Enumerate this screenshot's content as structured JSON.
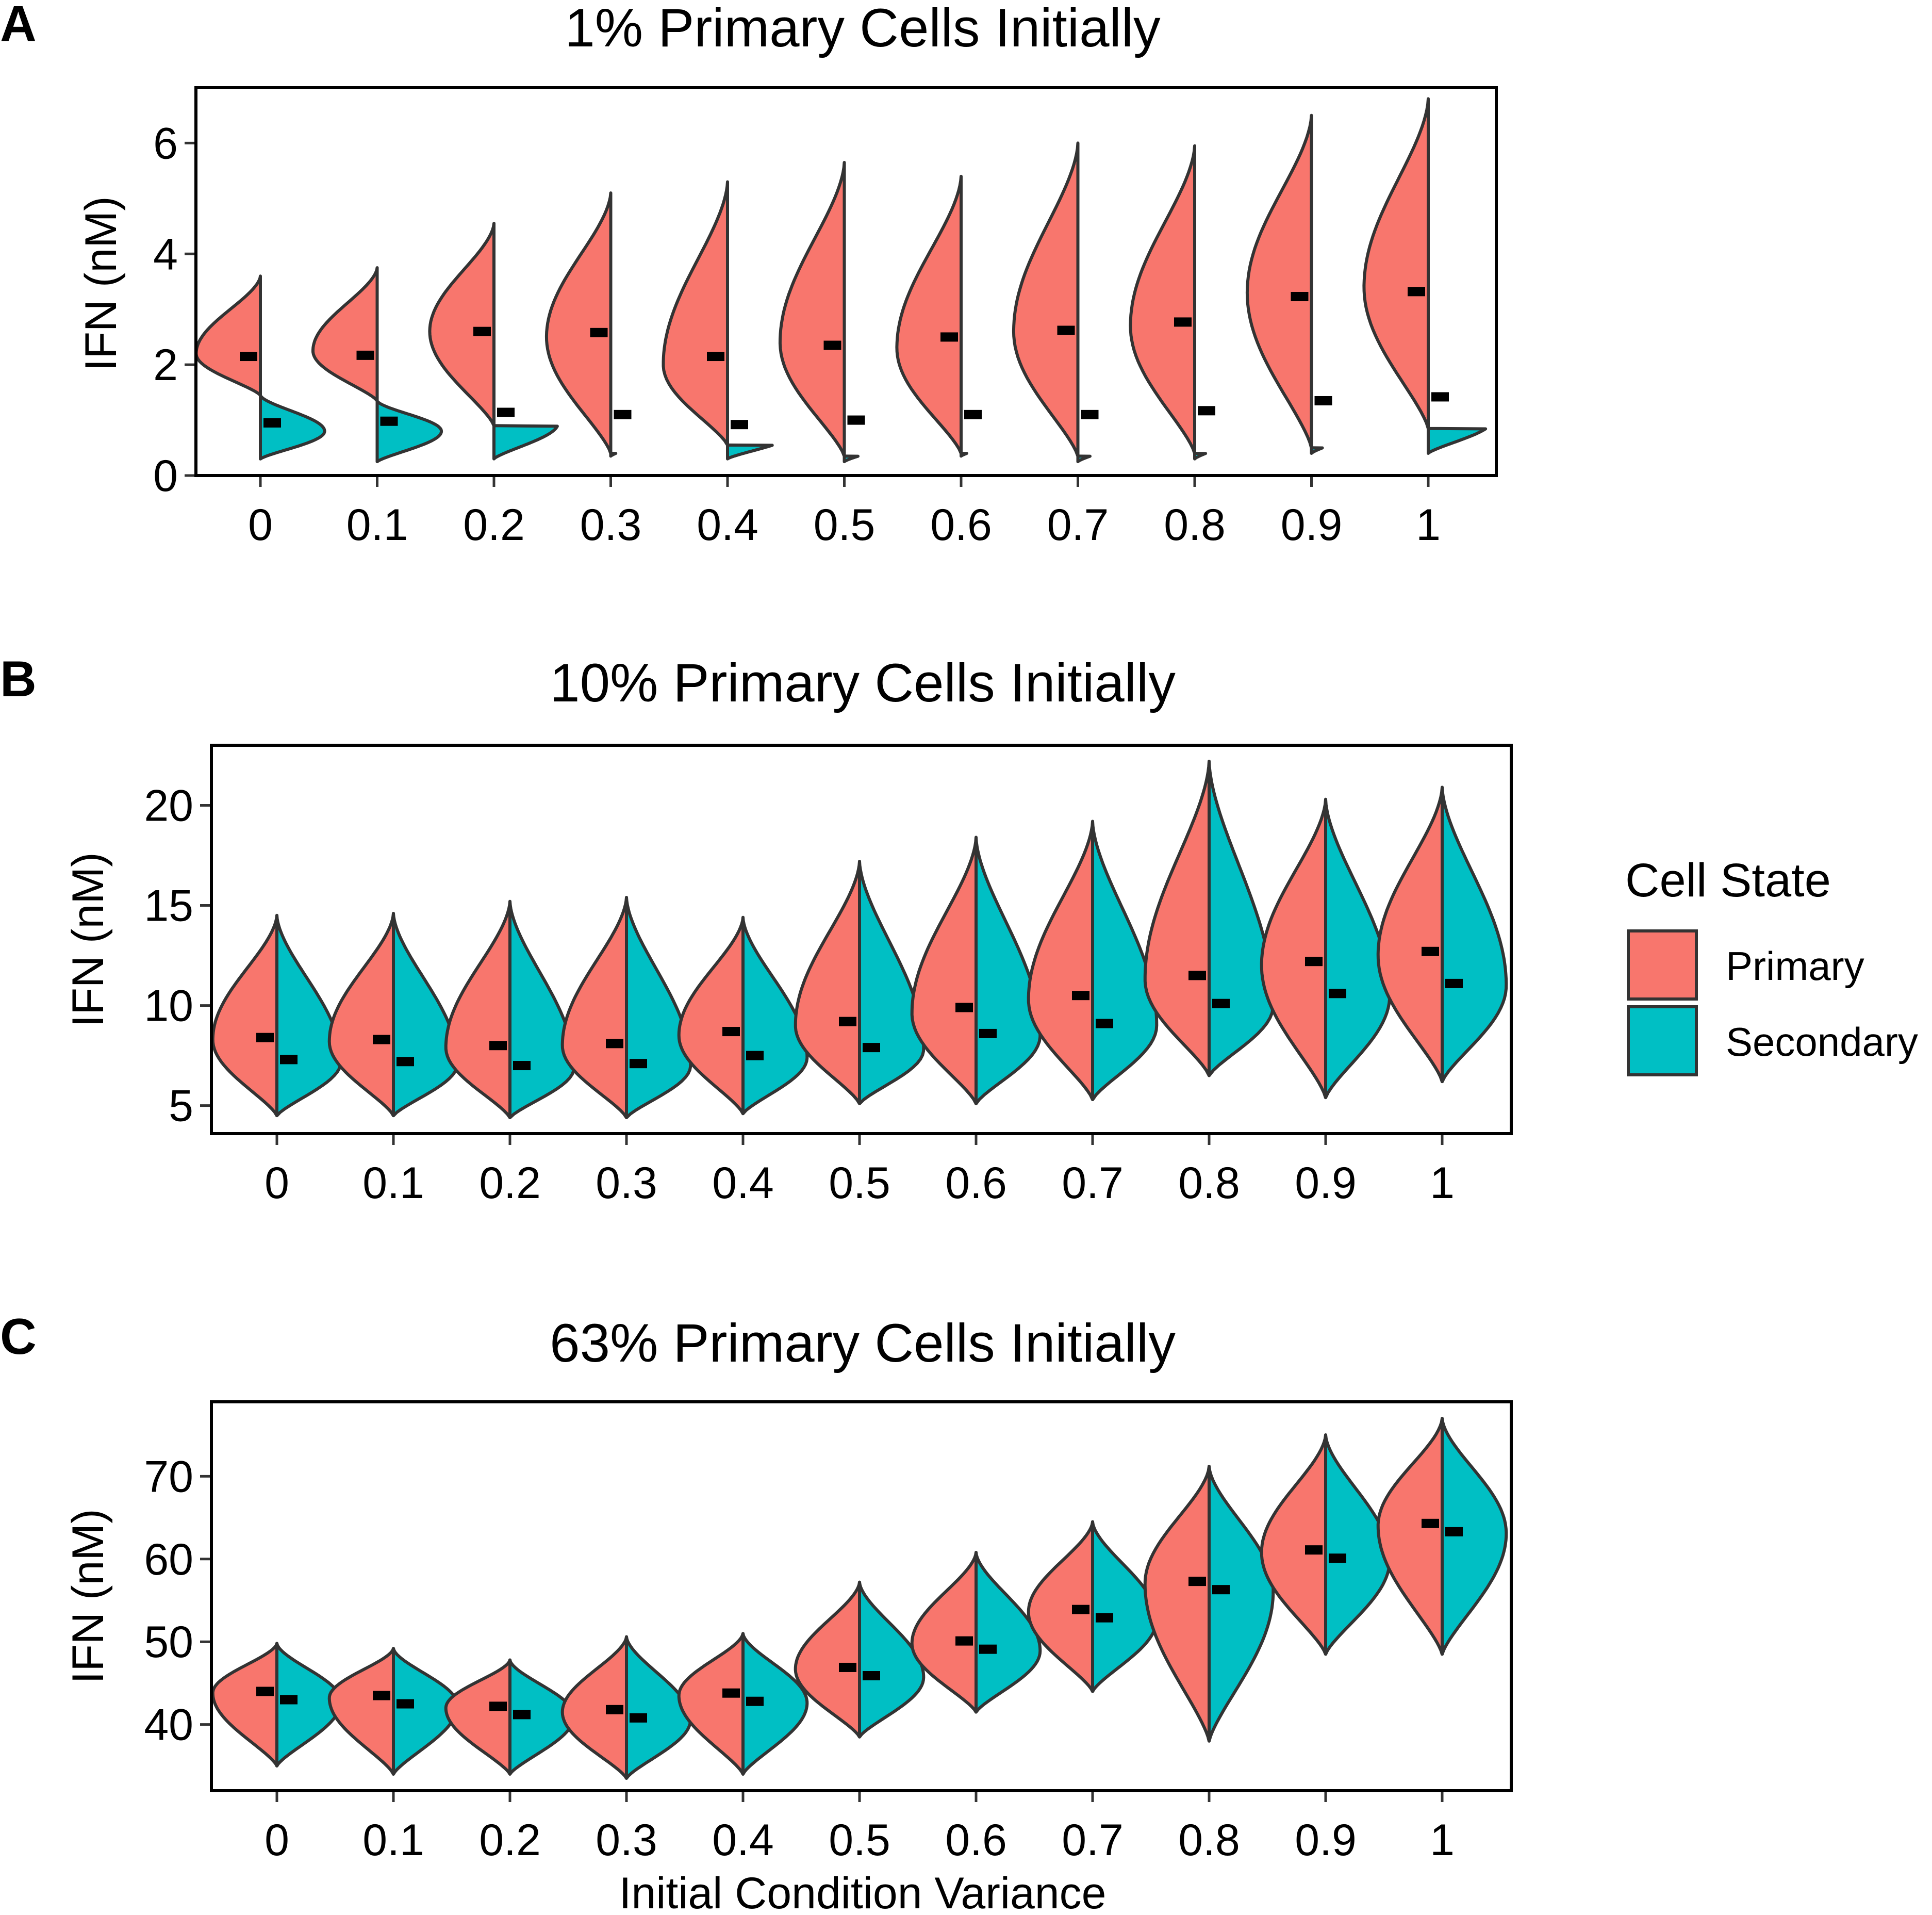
{
  "chart_data": [
    {
      "panel_label": "A",
      "type": "violin",
      "title": "1% Primary Cells Initially",
      "ylabel": "IFN (nM)",
      "xlabel": "",
      "ylim": [
        0,
        7.0
      ],
      "yticks": [
        0,
        2,
        4,
        6
      ],
      "categories": [
        "0",
        "0.1",
        "0.2",
        "0.3",
        "0.4",
        "0.5",
        "0.6",
        "0.7",
        "0.8",
        "0.9",
        "1"
      ],
      "series": [
        {
          "name": "Primary",
          "mean": [
            2.15,
            2.17,
            2.6,
            2.58,
            2.15,
            2.35,
            2.5,
            2.62,
            2.77,
            3.23,
            3.32
          ],
          "min": [
            1.45,
            1.35,
            0.9,
            0.4,
            0.55,
            0.35,
            0.4,
            0.35,
            0.4,
            0.5,
            0.85
          ],
          "max": [
            3.6,
            3.75,
            4.55,
            5.1,
            5.3,
            5.65,
            5.4,
            6.0,
            5.95,
            6.5,
            6.8
          ],
          "mode": [
            2.2,
            2.25,
            2.6,
            2.5,
            2.0,
            2.4,
            2.3,
            2.6,
            2.7,
            3.3,
            3.4
          ]
        },
        {
          "name": "Secondary",
          "mean": [
            0.95,
            0.98,
            1.14,
            1.1,
            0.92,
            1.0,
            1.1,
            1.1,
            1.17,
            1.35,
            1.42
          ],
          "min": [
            0.3,
            0.25,
            0.3,
            0.35,
            0.3,
            0.25,
            0.35,
            0.25,
            0.3,
            0.4,
            0.4
          ],
          "max": [
            1.45,
            1.35,
            0.9,
            0.4,
            0.55,
            0.35,
            0.4,
            0.35,
            0.4,
            0.5,
            0.85
          ],
          "mode": [
            0.8,
            0.8,
            0.95,
            0.9,
            0.75,
            0.75,
            0.85,
            0.8,
            0.9,
            1.0,
            1.0
          ]
        }
      ]
    },
    {
      "panel_label": "B",
      "type": "violin",
      "title": "10% Primary Cells Initially",
      "ylabel": "IFN (nM)",
      "xlabel": "",
      "ylim": [
        3.6,
        23.0
      ],
      "yticks": [
        5,
        10,
        15,
        20
      ],
      "categories": [
        "0",
        "0.1",
        "0.2",
        "0.3",
        "0.4",
        "0.5",
        "0.6",
        "0.7",
        "0.8",
        "0.9",
        "1"
      ],
      "series": [
        {
          "name": "Primary",
          "mean": [
            8.4,
            8.3,
            8.0,
            8.1,
            8.7,
            9.2,
            9.9,
            10.5,
            11.5,
            12.2,
            12.7
          ],
          "min": [
            4.5,
            4.5,
            4.4,
            4.4,
            4.6,
            5.1,
            5.1,
            5.3,
            6.5,
            5.4,
            6.2
          ],
          "max": [
            14.5,
            14.6,
            15.2,
            15.4,
            14.4,
            17.2,
            18.4,
            19.2,
            22.2,
            20.3,
            20.9
          ],
          "mode": [
            8.3,
            8.2,
            7.9,
            8.0,
            8.5,
            9.0,
            9.6,
            10.3,
            11.3,
            12.0,
            12.5
          ]
        },
        {
          "name": "Secondary",
          "mean": [
            7.3,
            7.2,
            7.0,
            7.1,
            7.5,
            7.9,
            8.6,
            9.1,
            10.1,
            10.6,
            11.1
          ],
          "min": [
            4.5,
            4.5,
            4.4,
            4.4,
            4.6,
            5.1,
            5.1,
            5.3,
            6.5,
            5.4,
            6.2
          ],
          "max": [
            14.5,
            14.6,
            15.2,
            15.4,
            14.4,
            17.2,
            18.4,
            19.2,
            22.2,
            20.3,
            20.9
          ],
          "mode": [
            7.2,
            7.1,
            6.9,
            7.0,
            7.4,
            7.8,
            8.5,
            9.0,
            10.0,
            10.5,
            11.0
          ]
        }
      ]
    },
    {
      "panel_label": "C",
      "type": "violin",
      "title": "63% Primary Cells Initially",
      "ylabel": "IFN (nM)",
      "xlabel": "Initial Condition Variance",
      "ylim": [
        32.0,
        79.0
      ],
      "yticks": [
        40,
        50,
        60,
        70
      ],
      "categories": [
        "0",
        "0.1",
        "0.2",
        "0.3",
        "0.4",
        "0.5",
        "0.6",
        "0.7",
        "0.8",
        "0.9",
        "1"
      ],
      "series": [
        {
          "name": "Primary",
          "mean": [
            44.0,
            43.5,
            42.2,
            41.8,
            43.8,
            46.9,
            50.1,
            53.9,
            57.3,
            61.1,
            64.3
          ],
          "min": [
            35.0,
            34.0,
            34.0,
            33.5,
            34.0,
            38.5,
            41.5,
            44.0,
            38.0,
            48.5,
            48.5
          ],
          "max": [
            49.8,
            49.2,
            47.8,
            50.6,
            51.0,
            57.2,
            60.8,
            64.5,
            71.2,
            75.0,
            77.0
          ],
          "mode": [
            43.8,
            43.2,
            42.0,
            41.5,
            43.5,
            46.7,
            49.8,
            53.6,
            57.0,
            60.8,
            64.0
          ]
        },
        {
          "name": "Secondary",
          "mean": [
            43.0,
            42.5,
            41.2,
            40.8,
            42.8,
            45.9,
            49.1,
            52.9,
            56.3,
            60.1,
            63.3
          ],
          "min": [
            35.0,
            34.0,
            34.0,
            33.5,
            34.0,
            38.5,
            41.5,
            44.0,
            38.0,
            48.5,
            48.5
          ],
          "max": [
            49.8,
            49.2,
            47.8,
            50.6,
            51.0,
            57.2,
            60.8,
            64.5,
            71.2,
            75.0,
            77.0
          ],
          "mode": [
            42.8,
            42.3,
            41.0,
            40.6,
            42.6,
            45.7,
            48.9,
            52.7,
            56.1,
            59.9,
            63.1
          ]
        }
      ]
    }
  ],
  "legend": {
    "title": "Cell State",
    "items": [
      {
        "label": "Primary",
        "color": "#F8766D"
      },
      {
        "label": "Secondary",
        "color": "#00BFC4"
      }
    ],
    "placement": "right"
  },
  "colors": {
    "primary": "#F8766D",
    "secondary": "#00BFC4",
    "outline": "#333333",
    "mean_marker": "#000000"
  }
}
